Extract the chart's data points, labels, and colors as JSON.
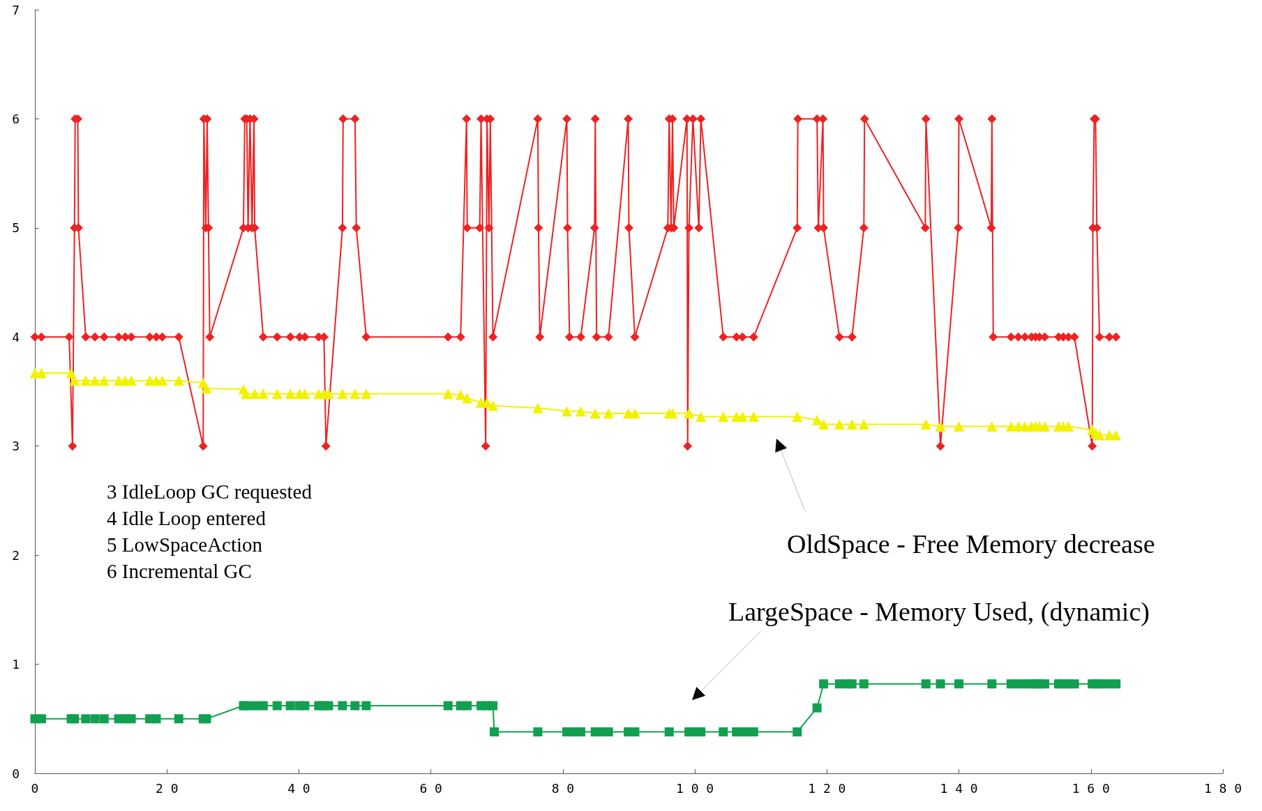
{
  "chart_data": {
    "type": "line",
    "xlim": [
      0,
      180
    ],
    "xticks": [
      0,
      20,
      40,
      60,
      80,
      100,
      120,
      140,
      160,
      180
    ],
    "ylim": [
      0,
      7
    ],
    "yticks": [
      0,
      1,
      2,
      3,
      4,
      5,
      6,
      7
    ],
    "grid": false,
    "annotations": [
      "3 IdleLoop GC requested",
      "4 Idle Loop entered",
      "5 LowSpaceAction",
      "6 Incremental GC",
      "OldSpace - Free Memory decrease",
      "LargeSpace - Memory Used, (dynamic)"
    ],
    "series": [
      {
        "color": "#ee2222",
        "marker": "diamond",
        "x": [
          0,
          1,
          5.2,
          5.7,
          6,
          6.1,
          6.5,
          6.6,
          7.7,
          9.1,
          10.5,
          12.7,
          13.7,
          14.6,
          17.4,
          18.4,
          19.3,
          21.8,
          25.5,
          25.6,
          25.9,
          26.1,
          26.3,
          26.5,
          31.6,
          31.8,
          32.1,
          32.3,
          32.6,
          32.9,
          33.2,
          33.3,
          34.6,
          36.7,
          38.7,
          40.1,
          40.9,
          43,
          43.8,
          44.1,
          46.6,
          46.7,
          48.5,
          48.7,
          50.2,
          62.6,
          64.5,
          65.4,
          65.5,
          67.4,
          67.6,
          68.3,
          68.5,
          68.8,
          69,
          69.4,
          76.2,
          76.3,
          76.5,
          80.6,
          80.7,
          81,
          82.7,
          84.8,
          84.9,
          85.1,
          86.9,
          89.9,
          90,
          90.9,
          95.9,
          96.1,
          96.4,
          96.6,
          96.8,
          98.8,
          98.9,
          99.1,
          99.7,
          100.6,
          100.9,
          104.3,
          106.3,
          107.2,
          108.9,
          115.5,
          115.6,
          118.5,
          118.7,
          119.4,
          119.5,
          121.9,
          123.8,
          125.6,
          125.7,
          134.9,
          135,
          137.2,
          139.9,
          140,
          144.9,
          145,
          145.2,
          147.9,
          149,
          150,
          151,
          151.6,
          152.2,
          153,
          155.1,
          155.8,
          156.6,
          157.5,
          160.2,
          160.3,
          160.5,
          160.7,
          160.9,
          161.3,
          162.8,
          163.8
        ],
        "values": [
          4,
          4,
          4,
          3,
          5,
          6,
          6,
          5,
          4,
          4,
          4,
          4,
          4,
          4,
          4,
          4,
          4,
          4,
          3,
          6,
          5,
          6,
          5,
          4,
          5,
          6,
          6,
          5,
          6,
          5,
          6,
          5,
          4,
          4,
          4,
          4,
          4,
          4,
          4,
          3,
          5,
          6,
          6,
          5,
          4,
          4,
          4,
          6,
          5,
          5,
          6,
          3,
          6,
          5,
          6,
          4,
          6,
          5,
          4,
          6,
          5,
          4,
          4,
          5,
          6,
          4,
          4,
          6,
          5,
          4,
          5,
          6,
          5,
          6,
          5,
          6,
          3,
          5,
          6,
          5,
          6,
          4,
          4,
          4,
          4,
          5,
          6,
          6,
          5,
          6,
          5,
          4,
          4,
          5,
          6,
          5,
          6,
          3,
          5,
          6,
          5,
          6,
          4,
          4,
          4,
          4,
          4,
          4,
          4,
          4,
          4,
          4,
          4,
          4,
          3,
          5,
          6,
          6,
          5,
          4,
          4,
          4
        ]
      },
      {
        "color": "#f2f200",
        "marker": "triangle",
        "x": [
          0,
          1,
          5.5,
          6,
          7.7,
          9.1,
          10.5,
          12.7,
          13.7,
          14.6,
          17.4,
          18.4,
          19.3,
          21.8,
          25.5,
          26,
          31.6,
          32,
          33.3,
          34.6,
          36.7,
          38.7,
          40.1,
          40.9,
          43,
          43.8,
          44.5,
          46.6,
          48.5,
          50.2,
          62.6,
          64.5,
          65.5,
          67.6,
          68.5,
          69.4,
          76.2,
          80.6,
          82.7,
          84.9,
          86.9,
          89.9,
          90.9,
          96.1,
          96.6,
          99.1,
          100.9,
          104.3,
          106.3,
          107.2,
          108.9,
          115.5,
          118.5,
          119.5,
          121.9,
          123.8,
          125.6,
          135,
          137.2,
          140,
          145,
          147.9,
          149,
          150,
          151,
          151.6,
          152.2,
          153,
          155.1,
          155.8,
          156.6,
          160.2,
          160.7,
          161.3,
          162.8,
          163.8
        ],
        "values": [
          3.67,
          3.67,
          3.67,
          3.6,
          3.6,
          3.6,
          3.6,
          3.6,
          3.6,
          3.6,
          3.6,
          3.6,
          3.6,
          3.6,
          3.58,
          3.53,
          3.52,
          3.48,
          3.48,
          3.48,
          3.48,
          3.48,
          3.48,
          3.48,
          3.48,
          3.48,
          3.48,
          3.48,
          3.48,
          3.48,
          3.48,
          3.47,
          3.44,
          3.4,
          3.4,
          3.37,
          3.35,
          3.32,
          3.32,
          3.3,
          3.3,
          3.3,
          3.3,
          3.3,
          3.3,
          3.3,
          3.27,
          3.27,
          3.27,
          3.27,
          3.27,
          3.27,
          3.24,
          3.2,
          3.2,
          3.2,
          3.2,
          3.2,
          3.18,
          3.18,
          3.18,
          3.18,
          3.18,
          3.18,
          3.18,
          3.18,
          3.18,
          3.18,
          3.18,
          3.18,
          3.18,
          3.15,
          3.12,
          3.1,
          3.1,
          3.1
        ]
      },
      {
        "color": "#11a050",
        "marker": "square",
        "x": [
          0,
          1,
          5.5,
          6,
          7.7,
          9.1,
          10.5,
          12.7,
          13.7,
          14.6,
          17.4,
          18.4,
          21.8,
          25.5,
          26,
          31.6,
          32,
          33.3,
          34.6,
          36.7,
          38.7,
          40.1,
          40.9,
          43,
          43.8,
          44.5,
          46.6,
          48.5,
          50.2,
          62.6,
          64.5,
          65.5,
          67.6,
          68.5,
          69.4,
          69.6,
          76.2,
          80.6,
          81.4,
          82.7,
          84.9,
          85.7,
          86.9,
          89.9,
          90.9,
          96.1,
          99.1,
          100,
          100.9,
          104.3,
          106.3,
          107.2,
          108,
          108.9,
          115.5,
          118.5,
          119.5,
          121.9,
          123,
          123.8,
          125.6,
          135,
          137.2,
          140,
          145,
          147.9,
          149,
          150,
          151,
          151.6,
          152.2,
          153,
          155.1,
          155.8,
          156.6,
          157.5,
          160.2,
          160.9,
          161.6,
          162.8,
          163.8
        ],
        "values": [
          0.5,
          0.5,
          0.5,
          0.5,
          0.5,
          0.5,
          0.5,
          0.5,
          0.5,
          0.5,
          0.5,
          0.5,
          0.5,
          0.5,
          0.5,
          0.62,
          0.62,
          0.62,
          0.62,
          0.62,
          0.62,
          0.62,
          0.62,
          0.62,
          0.62,
          0.62,
          0.62,
          0.62,
          0.62,
          0.62,
          0.62,
          0.62,
          0.62,
          0.62,
          0.62,
          0.38,
          0.38,
          0.38,
          0.38,
          0.38,
          0.38,
          0.38,
          0.38,
          0.38,
          0.38,
          0.38,
          0.38,
          0.38,
          0.38,
          0.38,
          0.38,
          0.38,
          0.38,
          0.38,
          0.38,
          0.6,
          0.82,
          0.82,
          0.82,
          0.82,
          0.82,
          0.82,
          0.82,
          0.82,
          0.82,
          0.82,
          0.82,
          0.82,
          0.82,
          0.82,
          0.82,
          0.82,
          0.82,
          0.82,
          0.82,
          0.82,
          0.82,
          0.82,
          0.82,
          0.82,
          0.82
        ]
      }
    ]
  }
}
